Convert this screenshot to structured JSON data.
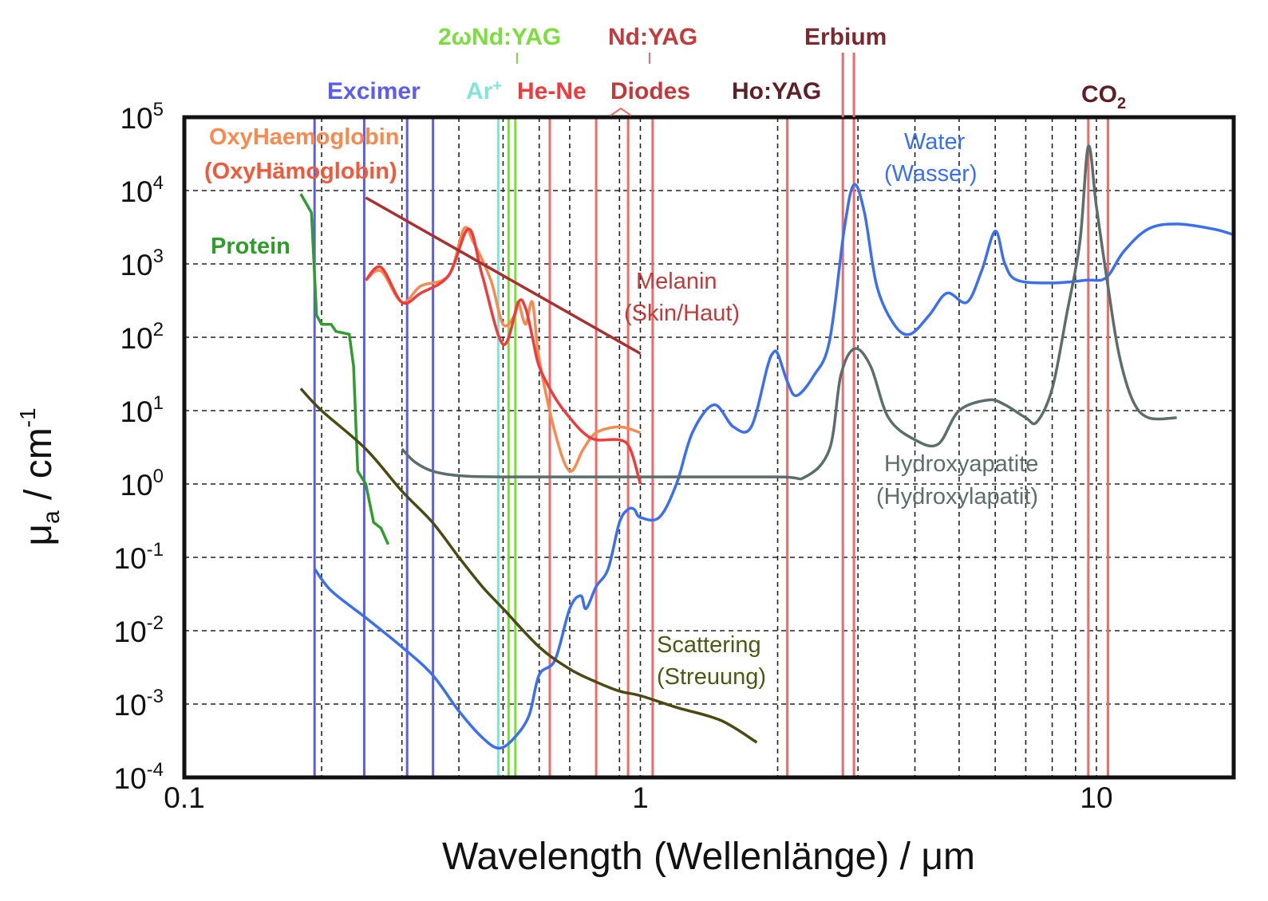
{
  "chart_data": {
    "type": "line",
    "x_scale": "log",
    "y_scale": "log",
    "xlim": [
      0.1,
      20
    ],
    "ylim": [
      0.0001,
      100000
    ],
    "grid": true,
    "xlabel": "Wavelength (Wellenlänge) / μm",
    "ylabel": "μa / cm-1",
    "ylabel_main": "μ",
    "ylabel_sub": "a",
    "ylabel_unit": " / cm",
    "ylabel_sup": "-1",
    "x_ticks": [
      {
        "value": 0.1,
        "label": "0.1"
      },
      {
        "value": 1,
        "label": "1"
      },
      {
        "value": 10,
        "label": "10"
      }
    ],
    "y_ticks": [
      {
        "value": 100000,
        "base": "10",
        "exp": "5"
      },
      {
        "value": 10000,
        "base": "10",
        "exp": "4"
      },
      {
        "value": 1000,
        "base": "10",
        "exp": "3"
      },
      {
        "value": 100,
        "base": "10",
        "exp": "2"
      },
      {
        "value": 10,
        "base": "10",
        "exp": "1"
      },
      {
        "value": 1,
        "base": "10",
        "exp": "0"
      },
      {
        "value": 0.1,
        "base": "10",
        "exp": "-1"
      },
      {
        "value": 0.01,
        "base": "10",
        "exp": "-2"
      },
      {
        "value": 0.001,
        "base": "10",
        "exp": "-3"
      },
      {
        "value": 0.0001,
        "base": "10",
        "exp": "-4"
      }
    ],
    "lasers": [
      {
        "name": "Excimer",
        "color": "#5b5cf0",
        "wavelengths": [
          0.193,
          0.248,
          0.308,
          0.351
        ]
      },
      {
        "name": "Ar+",
        "color": "#7fe6d6",
        "wavelengths": [
          0.488
        ]
      },
      {
        "name": "2ωNd:YAG",
        "color": "#7cdd3e",
        "wavelengths": [
          0.514,
          0.532
        ]
      },
      {
        "name": "He-Ne",
        "color": "#f06a6a",
        "wavelengths": [
          0.633
        ]
      },
      {
        "name": "Diodes",
        "color": "#f06a6a",
        "wavelengths": [
          0.8,
          0.94
        ]
      },
      {
        "name": "Nd:YAG",
        "color": "#f06a6a",
        "wavelengths": [
          1.064
        ]
      },
      {
        "name": "Ho:YAG",
        "color": "#f06a6a",
        "wavelengths": [
          2.1
        ]
      },
      {
        "name": "Erbium",
        "color": "#f06a6a",
        "wavelengths": [
          2.78,
          2.94
        ]
      },
      {
        "name": "CO2",
        "color": "#f06a6a",
        "wavelengths": [
          9.6,
          10.6
        ]
      }
    ],
    "laser_labels": {
      "excimer": "Excimer",
      "ar_base": "Ar",
      "ar_sup": "+",
      "shg": "2ωNd:YAG",
      "hene": "He-Ne",
      "diodes": "Diodes",
      "ndyag": "Nd:YAG",
      "hoyag": "Ho:YAG",
      "erbium": "Erbium",
      "co2_base": "CO",
      "co2_sub": "2"
    },
    "series_labels": {
      "oxy_1": "OxyHaemoglobin",
      "oxy_2": "(OxyHämoglobin)",
      "protein": "Protein",
      "melanin_1": "Melanin",
      "melanin_2": "(Skin/Haut)",
      "water_1": "Water",
      "water_2": "(Wasser)",
      "hydroxy_1": "Hydroxyapatite",
      "hydroxy_2": "(Hydroxylapatit)",
      "scatter_1": "Scattering",
      "scatter_2": "(Streuung)"
    },
    "series": [
      {
        "key": "water",
        "color": "#3b6ff2",
        "points": [
          [
            0.193,
            0.07
          ],
          [
            0.21,
            0.035
          ],
          [
            0.25,
            0.015
          ],
          [
            0.3,
            0.006
          ],
          [
            0.35,
            0.0025
          ],
          [
            0.4,
            0.0008
          ],
          [
            0.45,
            0.00035
          ],
          [
            0.49,
            0.00025
          ],
          [
            0.53,
            0.00035
          ],
          [
            0.57,
            0.0007
          ],
          [
            0.6,
            0.0025
          ],
          [
            0.65,
            0.004
          ],
          [
            0.7,
            0.02
          ],
          [
            0.74,
            0.03
          ],
          [
            0.76,
            0.02
          ],
          [
            0.8,
            0.04
          ],
          [
            0.85,
            0.07
          ],
          [
            0.9,
            0.3
          ],
          [
            0.94,
            0.45
          ],
          [
            0.97,
            0.45
          ],
          [
            1.0,
            0.35
          ],
          [
            1.1,
            0.35
          ],
          [
            1.2,
            1.0
          ],
          [
            1.3,
            5
          ],
          [
            1.45,
            12
          ],
          [
            1.6,
            6
          ],
          [
            1.75,
            6
          ],
          [
            1.9,
            40
          ],
          [
            1.95,
            60
          ],
          [
            2.0,
            60
          ],
          [
            2.1,
            25
          ],
          [
            2.2,
            16
          ],
          [
            2.4,
            30
          ],
          [
            2.6,
            90
          ],
          [
            2.8,
            3000
          ],
          [
            2.94,
            12000
          ],
          [
            3.1,
            5000
          ],
          [
            3.3,
            500
          ],
          [
            3.6,
            150
          ],
          [
            3.9,
            110
          ],
          [
            4.3,
            200
          ],
          [
            4.7,
            400
          ],
          [
            5.2,
            300
          ],
          [
            5.6,
            800
          ],
          [
            6.0,
            2800
          ],
          [
            6.3,
            1000
          ],
          [
            6.7,
            600
          ],
          [
            8.0,
            550
          ],
          [
            9.5,
            600
          ],
          [
            10.5,
            650
          ],
          [
            11.5,
            1500
          ],
          [
            13.0,
            3000
          ],
          [
            15.0,
            3500
          ],
          [
            18.0,
            3000
          ],
          [
            20.0,
            2500
          ]
        ]
      },
      {
        "key": "hydroxyapatite",
        "color": "#5b6e6a",
        "points": [
          [
            0.3,
            3
          ],
          [
            0.32,
            2
          ],
          [
            0.35,
            1.5
          ],
          [
            0.4,
            1.3
          ],
          [
            0.5,
            1.25
          ],
          [
            1.0,
            1.25
          ],
          [
            2.0,
            1.25
          ],
          [
            2.3,
            1.25
          ],
          [
            2.6,
            3
          ],
          [
            2.75,
            30
          ],
          [
            2.95,
            70
          ],
          [
            3.2,
            40
          ],
          [
            3.5,
            8
          ],
          [
            4.0,
            4
          ],
          [
            4.5,
            3.5
          ],
          [
            5.0,
            10
          ],
          [
            5.8,
            14
          ],
          [
            6.3,
            12
          ],
          [
            7.0,
            8
          ],
          [
            7.4,
            7
          ],
          [
            8.0,
            20
          ],
          [
            8.6,
            200
          ],
          [
            9.2,
            2000
          ],
          [
            9.6,
            40000
          ],
          [
            10.0,
            6000
          ],
          [
            10.6,
            500
          ],
          [
            11.2,
            60
          ],
          [
            12.0,
            14
          ],
          [
            13.0,
            8
          ],
          [
            15.0,
            8
          ]
        ]
      },
      {
        "key": "oxyhaemoglobin",
        "color": "#f88a50",
        "points": [
          [
            0.25,
            600
          ],
          [
            0.27,
            800
          ],
          [
            0.3,
            300
          ],
          [
            0.33,
            500
          ],
          [
            0.38,
            700
          ],
          [
            0.41,
            3000
          ],
          [
            0.43,
            2000
          ],
          [
            0.47,
            600
          ],
          [
            0.5,
            150
          ],
          [
            0.53,
            200
          ],
          [
            0.54,
            300
          ],
          [
            0.56,
            150
          ],
          [
            0.58,
            300
          ],
          [
            0.6,
            50
          ],
          [
            0.65,
            5
          ],
          [
            0.7,
            1.5
          ],
          [
            0.75,
            3
          ],
          [
            0.8,
            5
          ],
          [
            0.9,
            6
          ],
          [
            1.0,
            5
          ]
        ]
      },
      {
        "key": "haemoglobin",
        "color": "#ef3b3b",
        "points": [
          [
            0.25,
            600
          ],
          [
            0.27,
            900
          ],
          [
            0.3,
            300
          ],
          [
            0.33,
            400
          ],
          [
            0.38,
            700
          ],
          [
            0.42,
            3000
          ],
          [
            0.45,
            700
          ],
          [
            0.5,
            80
          ],
          [
            0.54,
            300
          ],
          [
            0.56,
            250
          ],
          [
            0.58,
            100
          ],
          [
            0.6,
            40
          ],
          [
            0.65,
            15
          ],
          [
            0.7,
            8
          ],
          [
            0.75,
            5
          ],
          [
            0.8,
            4
          ],
          [
            0.9,
            4
          ],
          [
            0.95,
            3
          ],
          [
            1.0,
            1
          ]
        ]
      },
      {
        "key": "melanin",
        "color": "#a9302e",
        "points": [
          [
            0.25,
            8000
          ],
          [
            1.0,
            60
          ]
        ]
      },
      {
        "key": "protein",
        "color": "#2f9c2c",
        "points": [
          [
            0.18,
            9000
          ],
          [
            0.19,
            5000
          ],
          [
            0.195,
            200
          ],
          [
            0.2,
            150
          ],
          [
            0.21,
            150
          ],
          [
            0.215,
            120
          ],
          [
            0.23,
            110
          ],
          [
            0.235,
            40
          ],
          [
            0.24,
            1.5
          ],
          [
            0.25,
            1
          ],
          [
            0.26,
            0.3
          ],
          [
            0.27,
            0.25
          ],
          [
            0.28,
            0.15
          ]
        ]
      },
      {
        "key": "scattering",
        "color": "#4a4a12",
        "points": [
          [
            0.18,
            20
          ],
          [
            0.2,
            10
          ],
          [
            0.25,
            3
          ],
          [
            0.3,
            0.8
          ],
          [
            0.35,
            0.3
          ],
          [
            0.4,
            0.1
          ],
          [
            0.45,
            0.04
          ],
          [
            0.5,
            0.02
          ],
          [
            0.6,
            0.006
          ],
          [
            0.7,
            0.003
          ],
          [
            0.8,
            0.002
          ],
          [
            0.9,
            0.0015
          ],
          [
            1.0,
            0.0013
          ],
          [
            1.2,
            0.0009
          ],
          [
            1.5,
            0.0006
          ],
          [
            1.8,
            0.0003
          ]
        ]
      }
    ]
  }
}
